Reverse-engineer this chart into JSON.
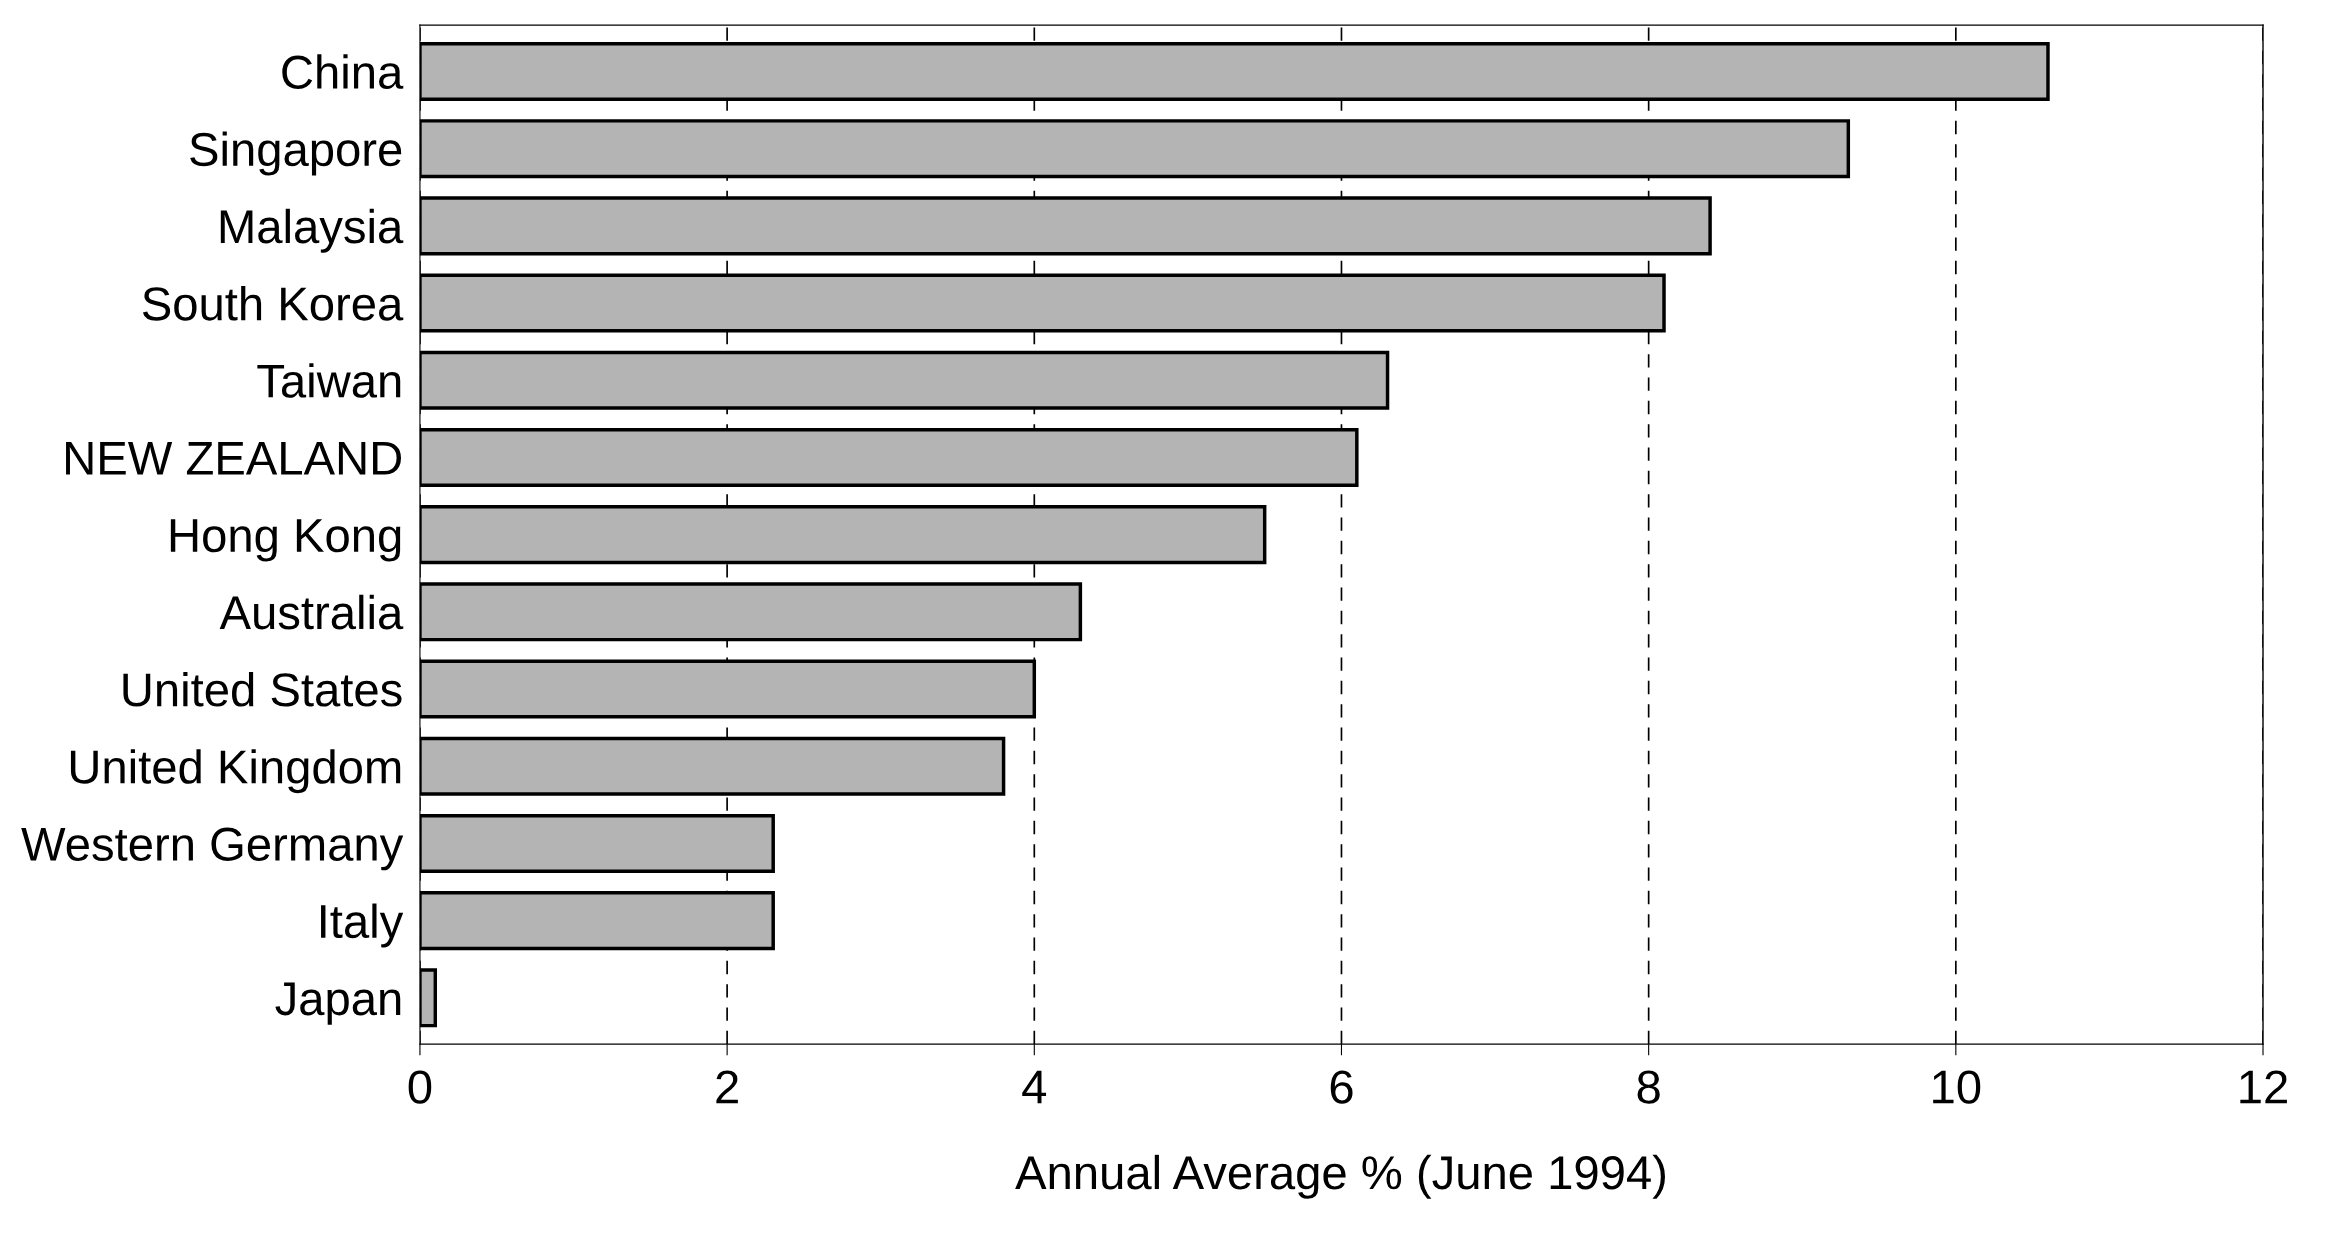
{
  "chart_data": {
    "type": "bar",
    "orientation": "horizontal",
    "xlabel": "Annual Average % (June 1994)",
    "categories": [
      "China",
      "Singapore",
      "Malaysia",
      "South Korea",
      "Taiwan",
      "NEW ZEALAND",
      "Hong Kong",
      "Australia",
      "United States",
      "United Kingdom",
      "Western Germany",
      "Italy",
      "Japan"
    ],
    "values": [
      10.6,
      9.3,
      8.4,
      8.1,
      6.3,
      6.1,
      5.5,
      4.3,
      4.0,
      3.8,
      2.3,
      2.3,
      0.1
    ],
    "color": "#b4b4b4",
    "xlim": [
      0,
      12
    ],
    "xticks": [
      0,
      2,
      4,
      6,
      8,
      10,
      12
    ],
    "grid": "x",
    "line_style": "dashed",
    "legend": false
  }
}
